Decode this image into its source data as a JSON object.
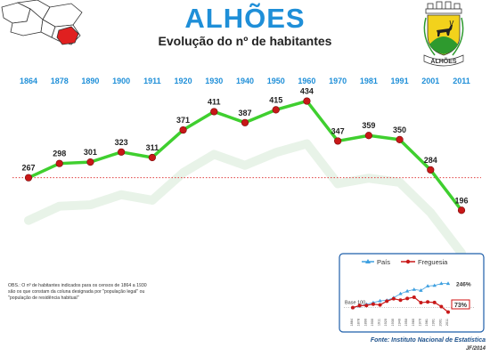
{
  "header": {
    "title": "ALHÕES",
    "subtitle": "Evolução do nº de habitantes"
  },
  "map_thumbnail": {
    "highlight_color": "#e02020"
  },
  "coat_of_arms": {
    "motto": "ALHÕES",
    "shield_color": "#f2d21c",
    "hill_color": "#2e9a2e"
  },
  "chart_data": [
    {
      "type": "line",
      "categories": [
        "1864",
        "1878",
        "1890",
        "1900",
        "1911",
        "1920",
        "1930",
        "1940",
        "1950",
        "1960",
        "1970",
        "1981",
        "1991",
        "2001",
        "2011"
      ],
      "series": [
        {
          "values": [
            267,
            298,
            301,
            323,
            311,
            371,
            411,
            387,
            415,
            434,
            347,
            359,
            350,
            284,
            196
          ],
          "color": "#3fcf2f",
          "marker_color": "#c81818"
        }
      ],
      "reference_line": {
        "value": 267,
        "style": "dotted",
        "color": "#e04040"
      },
      "ylim": [
        150,
        470
      ],
      "label_color": "#1f8fd8"
    },
    {
      "type": "line",
      "legend": [
        "País",
        "Freguesia"
      ],
      "legend_position": "top",
      "annotations": {
        "base_label": "Base 100",
        "pais_end": "246%",
        "freguesia_end": "73%"
      },
      "categories": [
        "1864",
        "1878",
        "1890",
        "1900",
        "1911",
        "1920",
        "1930",
        "1940",
        "1950",
        "1960",
        "1970",
        "1981",
        "1991",
        "2001",
        "2011"
      ],
      "series": [
        {
          "name": "País",
          "values": [
            100,
            109,
            120,
            130,
            141,
            144,
            160,
            184,
            200,
            210,
            204,
            231,
            234,
            246,
            246
          ],
          "color": "#3fa0e0"
        },
        {
          "name": "Freguesia",
          "values": [
            100,
            112,
            113,
            121,
            116,
            139,
            154,
            145,
            155,
            163,
            130,
            134,
            131,
            106,
            73
          ],
          "color": "#c81818"
        }
      ],
      "ylim": [
        60,
        260
      ]
    }
  ],
  "notes": {
    "obs": "OBS.: O nº de habitantes indicados para os censos de 1864 a 1930 são os que constam da coluna designada por \"população legal\" ou \"população de residência habitual\"",
    "source": "Fonte: Instituto Nacional de Estatística",
    "credit": "JF/2014"
  }
}
